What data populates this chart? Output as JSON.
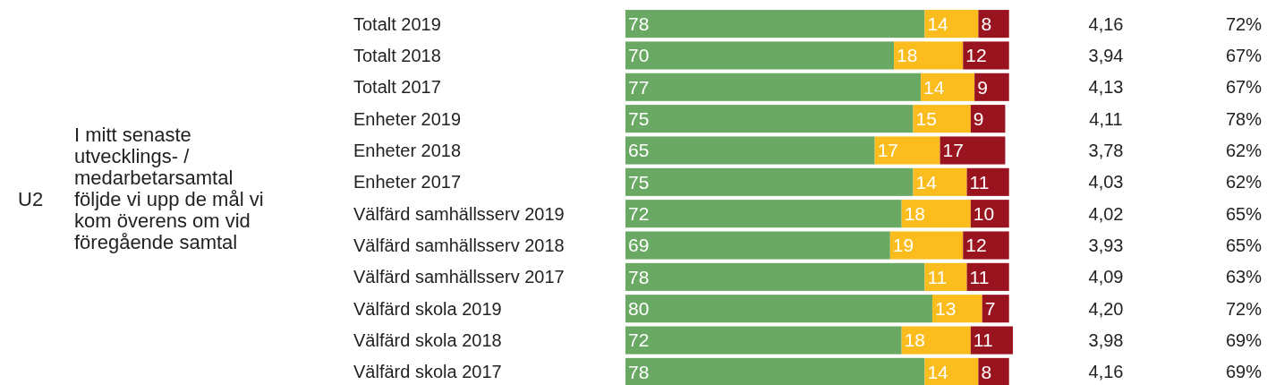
{
  "chart_data": {
    "type": "bar",
    "orientation": "horizontal",
    "stacked": true,
    "data_labels": true,
    "xlim": [
      0,
      101
    ],
    "categories": [
      "Totalt 2019",
      "Totalt 2018",
      "Totalt 2017",
      "Enheter 2019",
      "Enheter 2018",
      "Enheter 2017",
      "Välfärd samhällsserv 2019",
      "Välfärd samhällsserv 2018",
      "Välfärd samhällsserv 2017",
      "Välfärd skola 2019",
      "Välfärd skola 2018",
      "Välfärd skola 2017"
    ],
    "series": [
      {
        "color": "#6aa964",
        "values": [
          78,
          70,
          77,
          75,
          65,
          75,
          72,
          69,
          78,
          80,
          72,
          78
        ]
      },
      {
        "color": "#fbbc1e",
        "values": [
          14,
          18,
          14,
          15,
          17,
          14,
          18,
          19,
          11,
          13,
          18,
          14
        ]
      },
      {
        "color": "#9a1420",
        "values": [
          8,
          12,
          9,
          9,
          17,
          11,
          10,
          12,
          11,
          7,
          11,
          8
        ]
      }
    ],
    "annotations": [
      "U2",
      "I mitt senaste\nutvecklings- /\nmedarbetarsamtal\nföljde vi upp de mål vi\nkom överens om vid\nföregående samtal",
      "4,16",
      "3,94",
      "4,13",
      "4,11",
      "3,78",
      "4,03",
      "4,02",
      "3,93",
      "4,09",
      "4,20",
      "3,98",
      "4,16",
      "72%",
      "67%",
      "67%",
      "78%",
      "62%",
      "62%",
      "65%",
      "65%",
      "63%",
      "72%",
      "69%",
      "69%"
    ]
  }
}
